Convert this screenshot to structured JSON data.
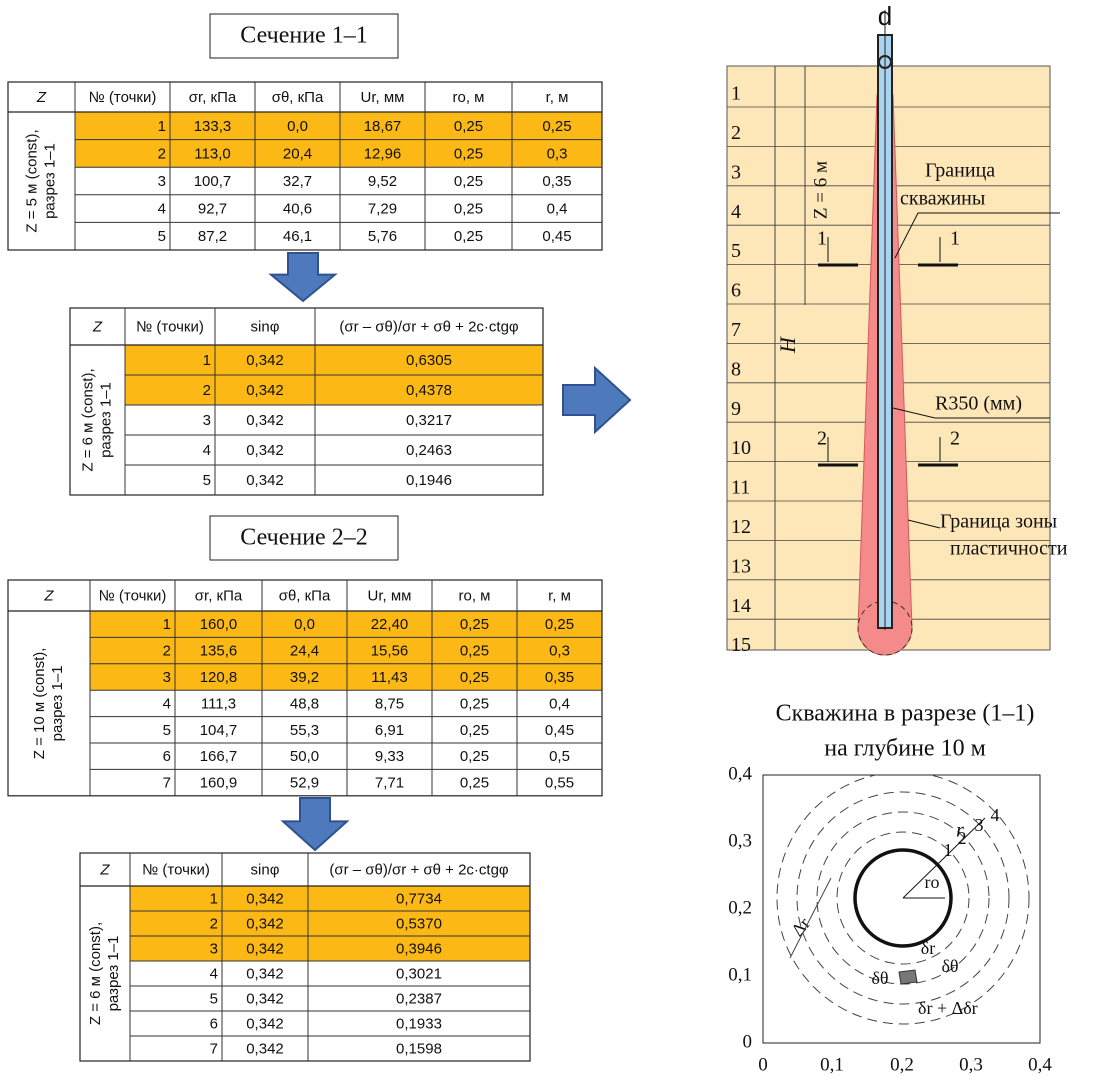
{
  "sections": [
    {
      "title": "Сечение 1–1",
      "table": {
        "header": [
          "Z",
          "№ (точки)",
          "σr, кПа",
          "σθ, кПа",
          "Ur, мм",
          "rо, м",
          "r, м"
        ],
        "z_label": [
          "Z = 5 м (const),",
          "разрез 1–1"
        ],
        "rows": [
          [
            "1",
            "133,3",
            "0,0",
            "18,67",
            "0,25",
            "0,25"
          ],
          [
            "2",
            "113,0",
            "20,4",
            "12,96",
            "0,25",
            "0,3"
          ],
          [
            "3",
            "100,7",
            "32,7",
            "9,52",
            "0,25",
            "0,35"
          ],
          [
            "4",
            "92,7",
            "40,6",
            "7,29",
            "0,25",
            "0,4"
          ],
          [
            "5",
            "87,2",
            "46,1",
            "5,76",
            "0,25",
            "0,45"
          ]
        ]
      },
      "criterion_table": {
        "header": [
          "Z",
          "№ (точки)",
          "sinφ",
          "(σr – σθ)/σr + σθ + 2c·ctgφ"
        ],
        "z_label": [
          "Z = 6 м (const),",
          "разрез 1–1"
        ],
        "rows": [
          [
            "1",
            "0,342",
            "0,6305"
          ],
          [
            "2",
            "0,342",
            "0,4378"
          ],
          [
            "3",
            "0,342",
            "0,3217"
          ],
          [
            "4",
            "0,342",
            "0,2463"
          ],
          [
            "5",
            "0,342",
            "0,1946"
          ]
        ]
      }
    },
    {
      "title": "Сечение 2–2",
      "table": {
        "header": [
          "Z",
          "№ (точки)",
          "σr, кПа",
          "σθ, кПа",
          "Ur, мм",
          "rо, м",
          "r, м"
        ],
        "z_label": [
          "Z = 10 м (const),",
          "разрез 1–1"
        ],
        "rows": [
          [
            "1",
            "160,0",
            "0,0",
            "22,40",
            "0,25",
            "0,25"
          ],
          [
            "2",
            "135,6",
            "24,4",
            "15,56",
            "0,25",
            "0,3"
          ],
          [
            "3",
            "120,8",
            "39,2",
            "11,43",
            "0,25",
            "0,35"
          ],
          [
            "4",
            "111,3",
            "48,8",
            "8,75",
            "0,25",
            "0,4"
          ],
          [
            "5",
            "104,7",
            "55,3",
            "6,91",
            "0,25",
            "0,45"
          ],
          [
            "6",
            "166,7",
            "50,0",
            "9,33",
            "0,25",
            "0,5"
          ],
          [
            "7",
            "160,9",
            "52,9",
            "7,71",
            "0,25",
            "0,55"
          ]
        ]
      },
      "criterion_table": {
        "header": [
          "Z",
          "№ (точки)",
          "sinφ",
          "(σr – σθ)/σr + σθ + 2c·ctgφ"
        ],
        "z_label": [
          "Z = 6 м (const),",
          "разрез 1–1"
        ],
        "rows": [
          [
            "1",
            "0,342",
            "0,7734"
          ],
          [
            "2",
            "0,342",
            "0,5370"
          ],
          [
            "3",
            "0,342",
            "0,3946"
          ],
          [
            "4",
            "0,342",
            "0,3021"
          ],
          [
            "5",
            "0,342",
            "0,2387"
          ],
          [
            "6",
            "0,342",
            "0,1933"
          ],
          [
            "7",
            "0,342",
            "0,1598"
          ]
        ]
      }
    }
  ],
  "well_diagram": {
    "layers": [
      "1",
      "2",
      "3",
      "4",
      "5",
      "6",
      "7",
      "8",
      "9",
      "10",
      "11",
      "12",
      "13",
      "14",
      "15"
    ],
    "top_label": "d",
    "depth_label": "Z = 6 м",
    "height_label": "H",
    "section_marks": [
      "1",
      "1",
      "2",
      "2"
    ],
    "well_boundary": [
      "Граница",
      "скважины"
    ],
    "radius_label": "R350 (мм)",
    "plastic_boundary": [
      "Граница зоны",
      "пластичности"
    ]
  },
  "cross_section": {
    "title": [
      "Скважина в разрезе (1–1)",
      "на глубине 10 м"
    ],
    "x_ticks": [
      "0",
      "0,1",
      "0,2",
      "0,3",
      "0,4"
    ],
    "y_ticks": [
      "0",
      "0,1",
      "0,2",
      "0,3",
      "0,4"
    ],
    "points": [
      "1",
      "2",
      "3",
      "4"
    ],
    "r_label": "r",
    "r0_label": "rо",
    "dr_label": "Δr",
    "delta_r": "δr",
    "delta_theta": [
      "δθ",
      "δθ"
    ],
    "delta_r_plus": "δr + Δδr"
  }
}
